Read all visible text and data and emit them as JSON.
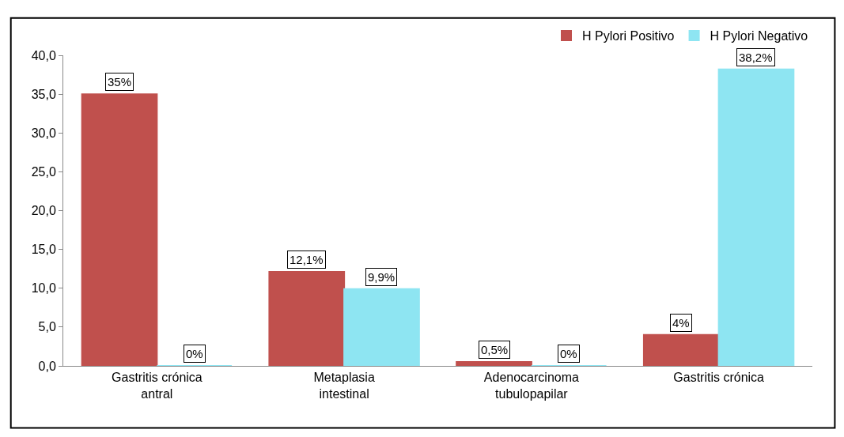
{
  "chart_data": {
    "type": "bar",
    "categories": [
      "Gastritis crónica antral",
      "Metaplasia intestinal",
      "Adenocarcinoma tubulopapilar",
      "Gastritis crónica"
    ],
    "series": [
      {
        "name": "H Pylori Positivo",
        "color": "#c0504d",
        "values": [
          35,
          12.1,
          0.5,
          4
        ],
        "value_labels": [
          "35%",
          "12,1%",
          "0,5%",
          "4%"
        ]
      },
      {
        "name": "H Pylori Negativo",
        "color": "#8ee5f2",
        "values": [
          0,
          9.9,
          0,
          38.2
        ],
        "value_labels": [
          "0%",
          "9,9%",
          "0%",
          "38,2%"
        ]
      }
    ],
    "ylim": [
      0,
      40
    ],
    "yticks": [
      {
        "value": 0,
        "label": "0,0"
      },
      {
        "value": 5,
        "label": "5,0"
      },
      {
        "value": 10,
        "label": "10,0"
      },
      {
        "value": 15,
        "label": "15,0"
      },
      {
        "value": 20,
        "label": "20,0"
      },
      {
        "value": 25,
        "label": "25,0"
      },
      {
        "value": 30,
        "label": "30,0"
      },
      {
        "value": 35,
        "label": "35,0"
      },
      {
        "value": 40,
        "label": "40,0"
      }
    ],
    "legend": "top right"
  }
}
